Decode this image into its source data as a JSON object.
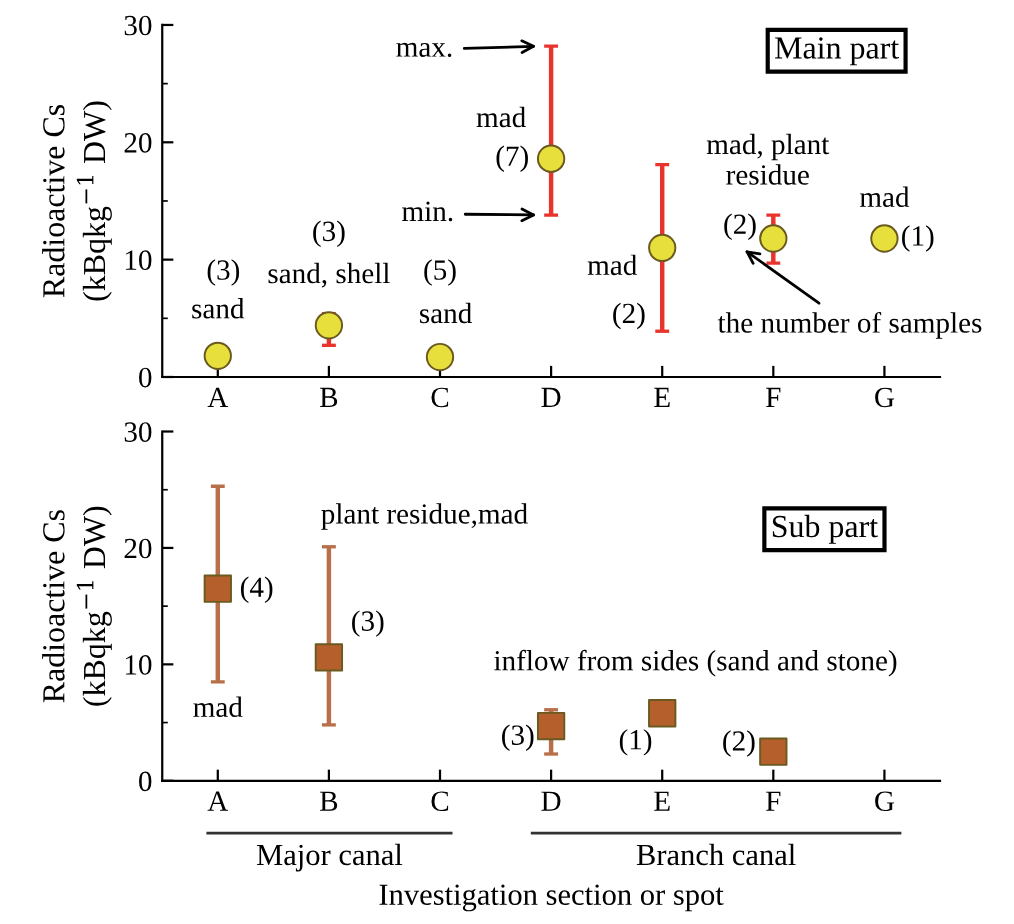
{
  "chart_data": [
    {
      "type": "scatter",
      "ylabel": "Radioactive Cs\n(kBqkg$^{−1}$ DW)",
      "categories": [
        "A",
        "B",
        "C",
        "D",
        "E",
        "F",
        "G"
      ],
      "ylim": [
        0,
        30
      ],
      "yticks": [
        0,
        10,
        20,
        30
      ],
      "marker": "circle",
      "grid": false,
      "series": [
        {
          "color": "#e6df3c",
          "values": [
            1.8,
            4.4,
            1.7,
            18.6,
            11.0,
            11.8,
            11.8
          ],
          "errors": [
            null,
            [
              2.7,
              5.4
            ],
            null,
            [
              13.8,
              28.2
            ],
            [
              3.9,
              18.1
            ],
            [
              9.7,
              13.8
            ],
            null
          ]
        }
      ],
      "annotations": [
        "sand",
        "(3)",
        "sand, shell",
        "(3)",
        "(5)",
        "sand",
        "mad",
        "(7)",
        "max.",
        "min.",
        "mad",
        "(2)",
        "mad, plant\nresidue",
        "(2)",
        "the number of samples",
        "mad",
        "(1)",
        "Main part"
      ]
    },
    {
      "type": "scatter",
      "ylabel": "Radioactive Cs\n(kBqkg$^{−1}$ DW)",
      "xlabel": "Investigation section or spot",
      "categories": [
        "A",
        "B",
        "C",
        "D",
        "E",
        "F",
        "G"
      ],
      "ylim": [
        0,
        30
      ],
      "yticks": [
        0,
        10,
        20,
        30
      ],
      "marker": "square",
      "grid": false,
      "series": [
        {
          "color": "#b5602c",
          "values": [
            16.5,
            10.6,
            null,
            4.7,
            5.8,
            2.5,
            null
          ],
          "errors": [
            [
              8.5,
              25.3
            ],
            [
              4.8,
              20.1
            ],
            null,
            [
              2.3,
              6.1
            ],
            null,
            null,
            null
          ]
        }
      ],
      "annotations": [
        "(4)",
        "mad",
        "plant residue,mad",
        "(3)",
        "inflow from sides (sand and stone)",
        "(3)",
        "(1)",
        "(2)",
        "Sub part",
        "Major canal",
        "Branch canal"
      ]
    }
  ]
}
